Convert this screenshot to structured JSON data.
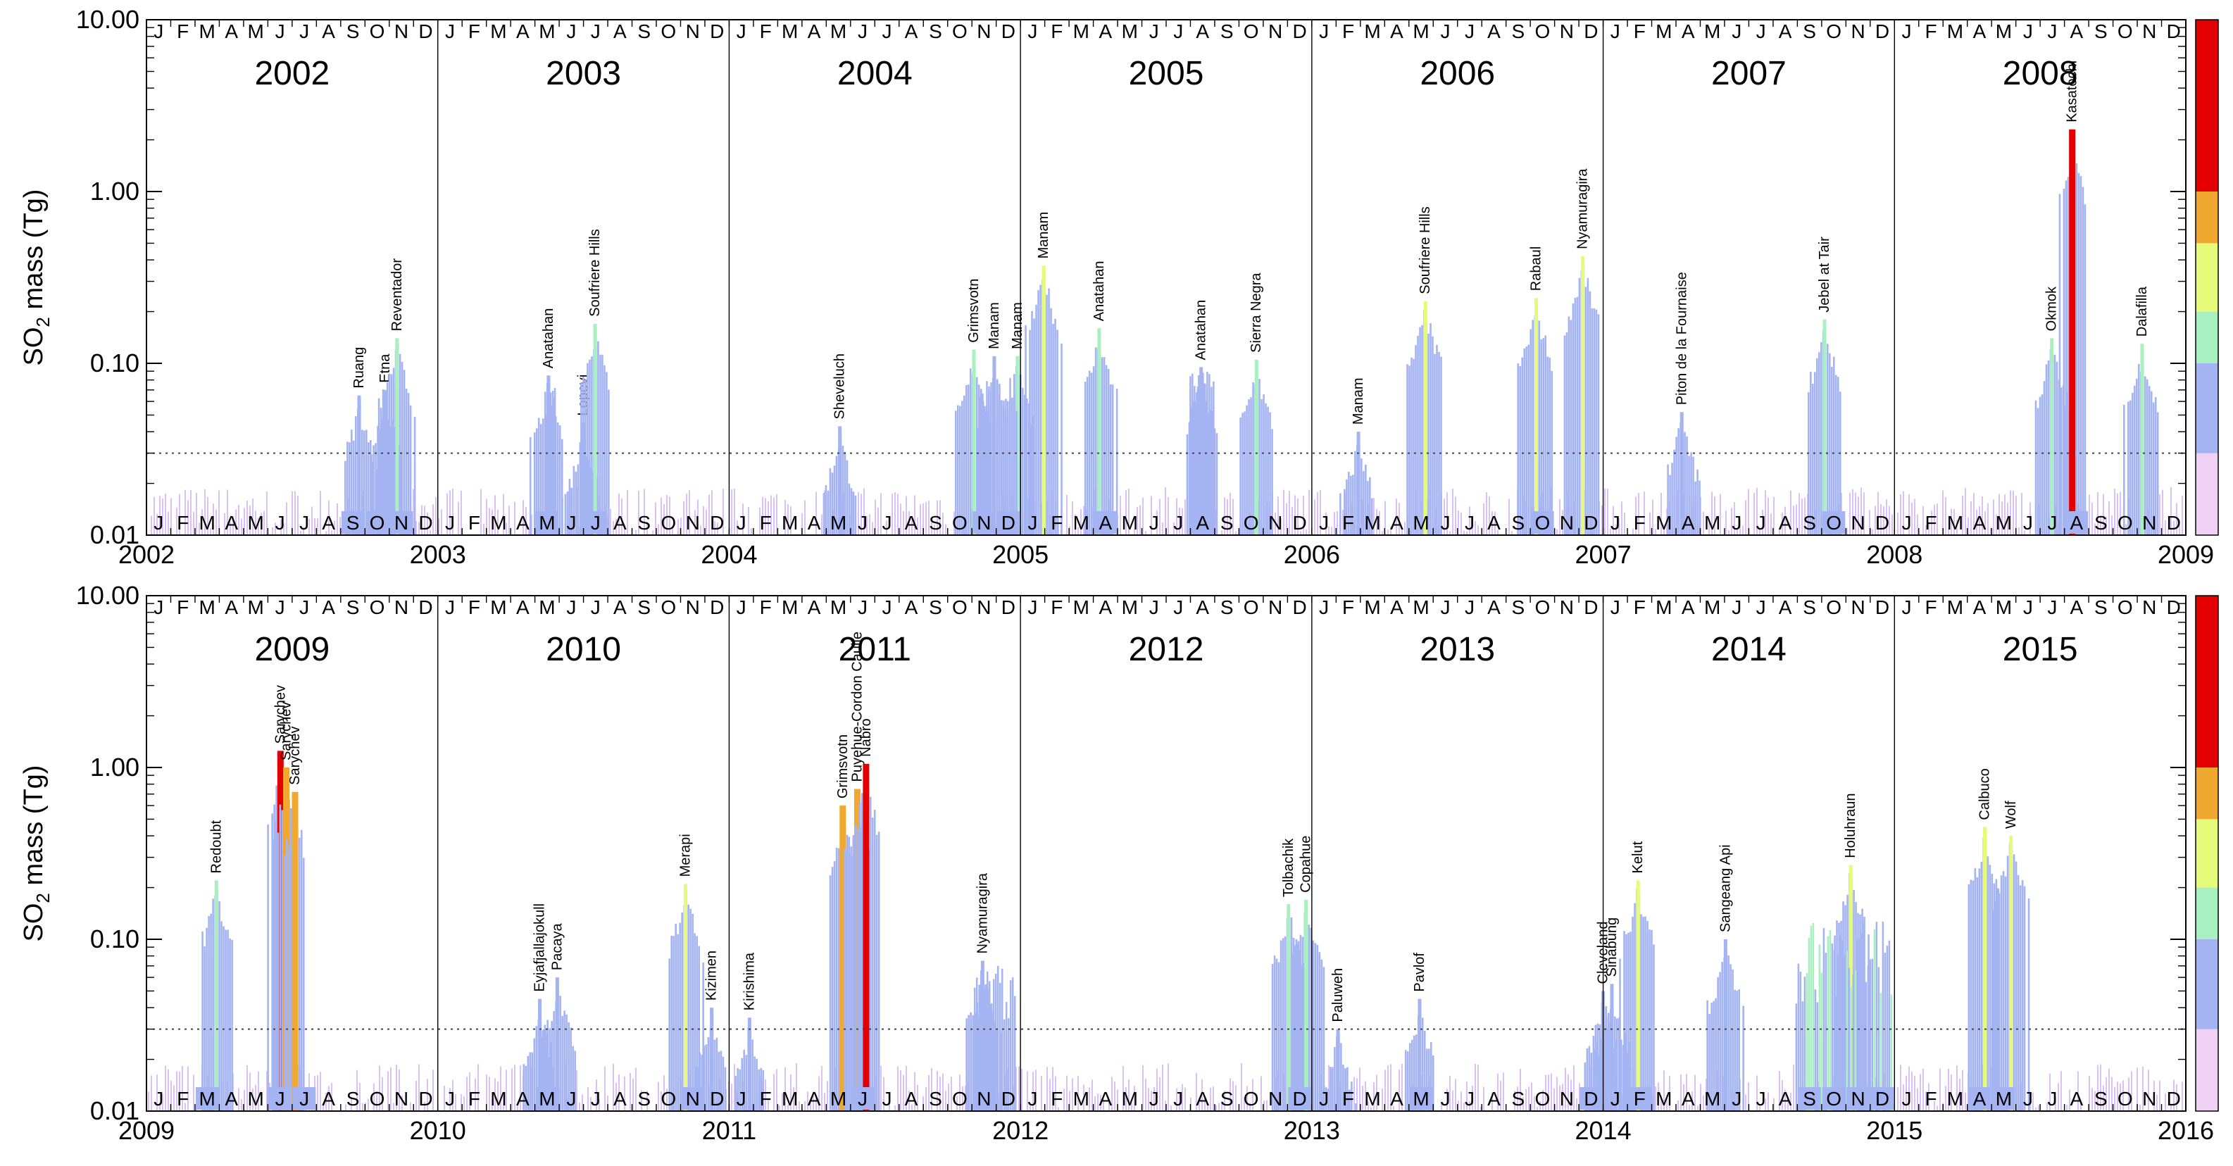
{
  "chart_data": [
    {
      "type": "bar",
      "panel": "top",
      "title": "",
      "ylabel_main": "SO",
      "ylabel_sub": "2",
      "ylabel_rest": " mass (Tg)",
      "yscale": "log",
      "ylim": [
        0.01,
        10.0
      ],
      "ytick_labels": [
        "10.00",
        "1.00",
        "0.10",
        "0.01"
      ],
      "ytick_values": [
        10.0,
        1.0,
        0.1,
        0.01
      ],
      "threshold_tg": 0.03,
      "x_range_years": [
        2002,
        2009
      ],
      "year_labels": [
        "2002",
        "2003",
        "2004",
        "2005",
        "2006",
        "2007",
        "2008"
      ],
      "x_tick_labels": [
        "2002",
        "2003",
        "2004",
        "2005",
        "2006",
        "2007",
        "2008",
        "2009"
      ],
      "month_letters": [
        "J",
        "F",
        "M",
        "A",
        "M",
        "J",
        "J",
        "A",
        "S",
        "O",
        "N",
        "D"
      ],
      "highlighted_months_bottom": [
        [
          2002,
          8
        ],
        [
          2002,
          9
        ],
        [
          2002,
          10
        ],
        [
          2003,
          4
        ],
        [
          2003,
          6
        ],
        [
          2004,
          10
        ],
        [
          2004,
          11
        ],
        [
          2005,
          3
        ],
        [
          2005,
          7
        ],
        [
          2006,
          9
        ],
        [
          2007,
          9
        ],
        [
          2008,
          7
        ]
      ],
      "eruptions": [
        {
          "name": "Ruang",
          "date": 2002.73,
          "value": 0.065,
          "color": "#a4b4f2"
        },
        {
          "name": "Etna",
          "date": 2002.82,
          "value": 0.07,
          "color": "#a4b4f2"
        },
        {
          "name": "Reventador",
          "date": 2002.86,
          "value": 0.14,
          "color": "#a8f0c0"
        },
        {
          "name": "Anatahan",
          "date": 2003.38,
          "value": 0.085,
          "color": "#a4b4f2"
        },
        {
          "name": "Lopevi",
          "date": 2003.5,
          "value": 0.045,
          "color": "#a4b4f2"
        },
        {
          "name": "Soufriere Hills",
          "date": 2003.54,
          "value": 0.17,
          "color": "#a8f0c0"
        },
        {
          "name": "Sheveluch",
          "date": 2004.38,
          "value": 0.043,
          "color": "#a4b4f2"
        },
        {
          "name": "Grimsvotn",
          "date": 2004.84,
          "value": 0.12,
          "color": "#a8f0c0"
        },
        {
          "name": "Manam",
          "date": 2004.91,
          "value": 0.11,
          "color": "#a4b4f2"
        },
        {
          "name": "Manam",
          "date": 2004.99,
          "value": 0.11,
          "color": "#a8f0c0"
        },
        {
          "name": "Manam",
          "date": 2005.08,
          "value": 0.37,
          "color": "#e6fb7a"
        },
        {
          "name": "Anatahan",
          "date": 2005.27,
          "value": 0.16,
          "color": "#a8f0c0"
        },
        {
          "name": "Anatahan",
          "date": 2005.62,
          "value": 0.095,
          "color": "#a4b4f2"
        },
        {
          "name": "Sierra Negra",
          "date": 2005.81,
          "value": 0.105,
          "color": "#a8f0c0"
        },
        {
          "name": "Manam",
          "date": 2006.16,
          "value": 0.04,
          "color": "#a4b4f2"
        },
        {
          "name": "Soufriere Hills",
          "date": 2006.39,
          "value": 0.23,
          "color": "#e6fb7a"
        },
        {
          "name": "Rabaul",
          "date": 2006.77,
          "value": 0.24,
          "color": "#e6fb7a"
        },
        {
          "name": "Nyamuragira",
          "date": 2006.93,
          "value": 0.42,
          "color": "#e6fb7a"
        },
        {
          "name": "Piton de la Fournaise",
          "date": 2007.27,
          "value": 0.052,
          "color": "#a4b4f2"
        },
        {
          "name": "Jebel at Tair",
          "date": 2007.76,
          "value": 0.18,
          "color": "#a8f0c0"
        },
        {
          "name": "Okmok",
          "date": 2008.54,
          "value": 0.14,
          "color": "#a8f0c0"
        },
        {
          "name": "Kasatochi",
          "date": 2008.61,
          "value": 2.3,
          "color": "#e40000"
        },
        {
          "name": "Dalafilla",
          "date": 2008.85,
          "value": 0.13,
          "color": "#a8f0c0"
        }
      ]
    },
    {
      "type": "bar",
      "panel": "bottom",
      "title": "",
      "ylabel_main": "SO",
      "ylabel_sub": "2",
      "ylabel_rest": " mass (Tg)",
      "yscale": "log",
      "ylim": [
        0.01,
        10.0
      ],
      "ytick_labels": [
        "10.00",
        "1.00",
        "0.10",
        "0.01"
      ],
      "ytick_values": [
        10.0,
        1.0,
        0.1,
        0.01
      ],
      "threshold_tg": 0.03,
      "x_range_years": [
        2009,
        2016
      ],
      "year_labels": [
        "2009",
        "2010",
        "2011",
        "2012",
        "2013",
        "2014",
        "2015"
      ],
      "x_tick_labels": [
        "2009",
        "2010",
        "2011",
        "2012",
        "2013",
        "2014",
        "2015",
        "2016"
      ],
      "month_letters": [
        "J",
        "F",
        "M",
        "A",
        "M",
        "J",
        "J",
        "A",
        "S",
        "O",
        "N",
        "D"
      ],
      "highlighted_months_bottom": [
        [
          2009,
          2
        ],
        [
          2009,
          5
        ],
        [
          2009,
          6
        ],
        [
          2010,
          4
        ],
        [
          2010,
          10
        ],
        [
          2011,
          5
        ],
        [
          2011,
          10
        ],
        [
          2012,
          11
        ],
        [
          2013,
          4
        ],
        [
          2013,
          11
        ],
        [
          2014,
          1
        ],
        [
          2014,
          8
        ],
        [
          2014,
          9
        ],
        [
          2014,
          10
        ],
        [
          2014,
          11
        ],
        [
          2015,
          3
        ],
        [
          2015,
          4
        ]
      ],
      "eruptions": [
        {
          "name": "Redoubt",
          "date": 2009.24,
          "value": 0.22,
          "color": "#a8f0c0"
        },
        {
          "name": "Sarychev",
          "date": 2009.46,
          "value": 1.25,
          "color": "#e40000"
        },
        {
          "name": "Sarychev",
          "date": 2009.48,
          "value": 1.0,
          "color": "#f0a830"
        },
        {
          "name": "Sarychev",
          "date": 2009.51,
          "value": 0.72,
          "color": "#f0a830"
        },
        {
          "name": "Eyjafjallajokull",
          "date": 2010.35,
          "value": 0.045,
          "color": "#a4b4f2"
        },
        {
          "name": "Pacaya",
          "date": 2010.41,
          "value": 0.06,
          "color": "#a4b4f2"
        },
        {
          "name": "Merapi",
          "date": 2010.85,
          "value": 0.21,
          "color": "#e6fb7a"
        },
        {
          "name": "Kizimen",
          "date": 2010.94,
          "value": 0.04,
          "color": "#a4b4f2"
        },
        {
          "name": "Kirishima",
          "date": 2011.07,
          "value": 0.035,
          "color": "#a4b4f2"
        },
        {
          "name": "Grimsvotn",
          "date": 2011.39,
          "value": 0.6,
          "color": "#f0a830"
        },
        {
          "name": "Puyehue-Cordon Caulle",
          "date": 2011.44,
          "value": 0.75,
          "color": "#f0a830"
        },
        {
          "name": "Nabro",
          "date": 2011.47,
          "value": 1.05,
          "color": "#e40000"
        },
        {
          "name": "Nyamuragira",
          "date": 2011.87,
          "value": 0.075,
          "color": "#a4b4f2"
        },
        {
          "name": "Tolbachik",
          "date": 2012.92,
          "value": 0.16,
          "color": "#a8f0c0"
        },
        {
          "name": "Copahue",
          "date": 2012.98,
          "value": 0.17,
          "color": "#a8f0c0"
        },
        {
          "name": "Paluweh",
          "date": 2013.09,
          "value": 0.03,
          "color": "#a4b4f2"
        },
        {
          "name": "Pavlof",
          "date": 2013.37,
          "value": 0.045,
          "color": "#a4b4f2"
        },
        {
          "name": "Cleveland",
          "date": 2014.0,
          "value": 0.05,
          "color": "#a4b4f2"
        },
        {
          "name": "Sinabung",
          "date": 2014.03,
          "value": 0.055,
          "color": "#a4b4f2"
        },
        {
          "name": "Kelut",
          "date": 2014.12,
          "value": 0.22,
          "color": "#e6fb7a"
        },
        {
          "name": "Sangeang Api",
          "date": 2014.42,
          "value": 0.1,
          "color": "#a4b4f2"
        },
        {
          "name": "Holuhraun",
          "date": 2014.85,
          "value": 0.27,
          "color": "#e6fb7a"
        },
        {
          "name": "Calbuco",
          "date": 2015.31,
          "value": 0.45,
          "color": "#e6fb7a"
        },
        {
          "name": "Wolf",
          "date": 2015.4,
          "value": 0.4,
          "color": "#e6fb7a"
        }
      ]
    }
  ],
  "colorbar": {
    "colors": [
      "#f0d0f4",
      "#a4b4f2",
      "#a8f0c0",
      "#e6fb7a",
      "#f0a830",
      "#e40000"
    ]
  }
}
